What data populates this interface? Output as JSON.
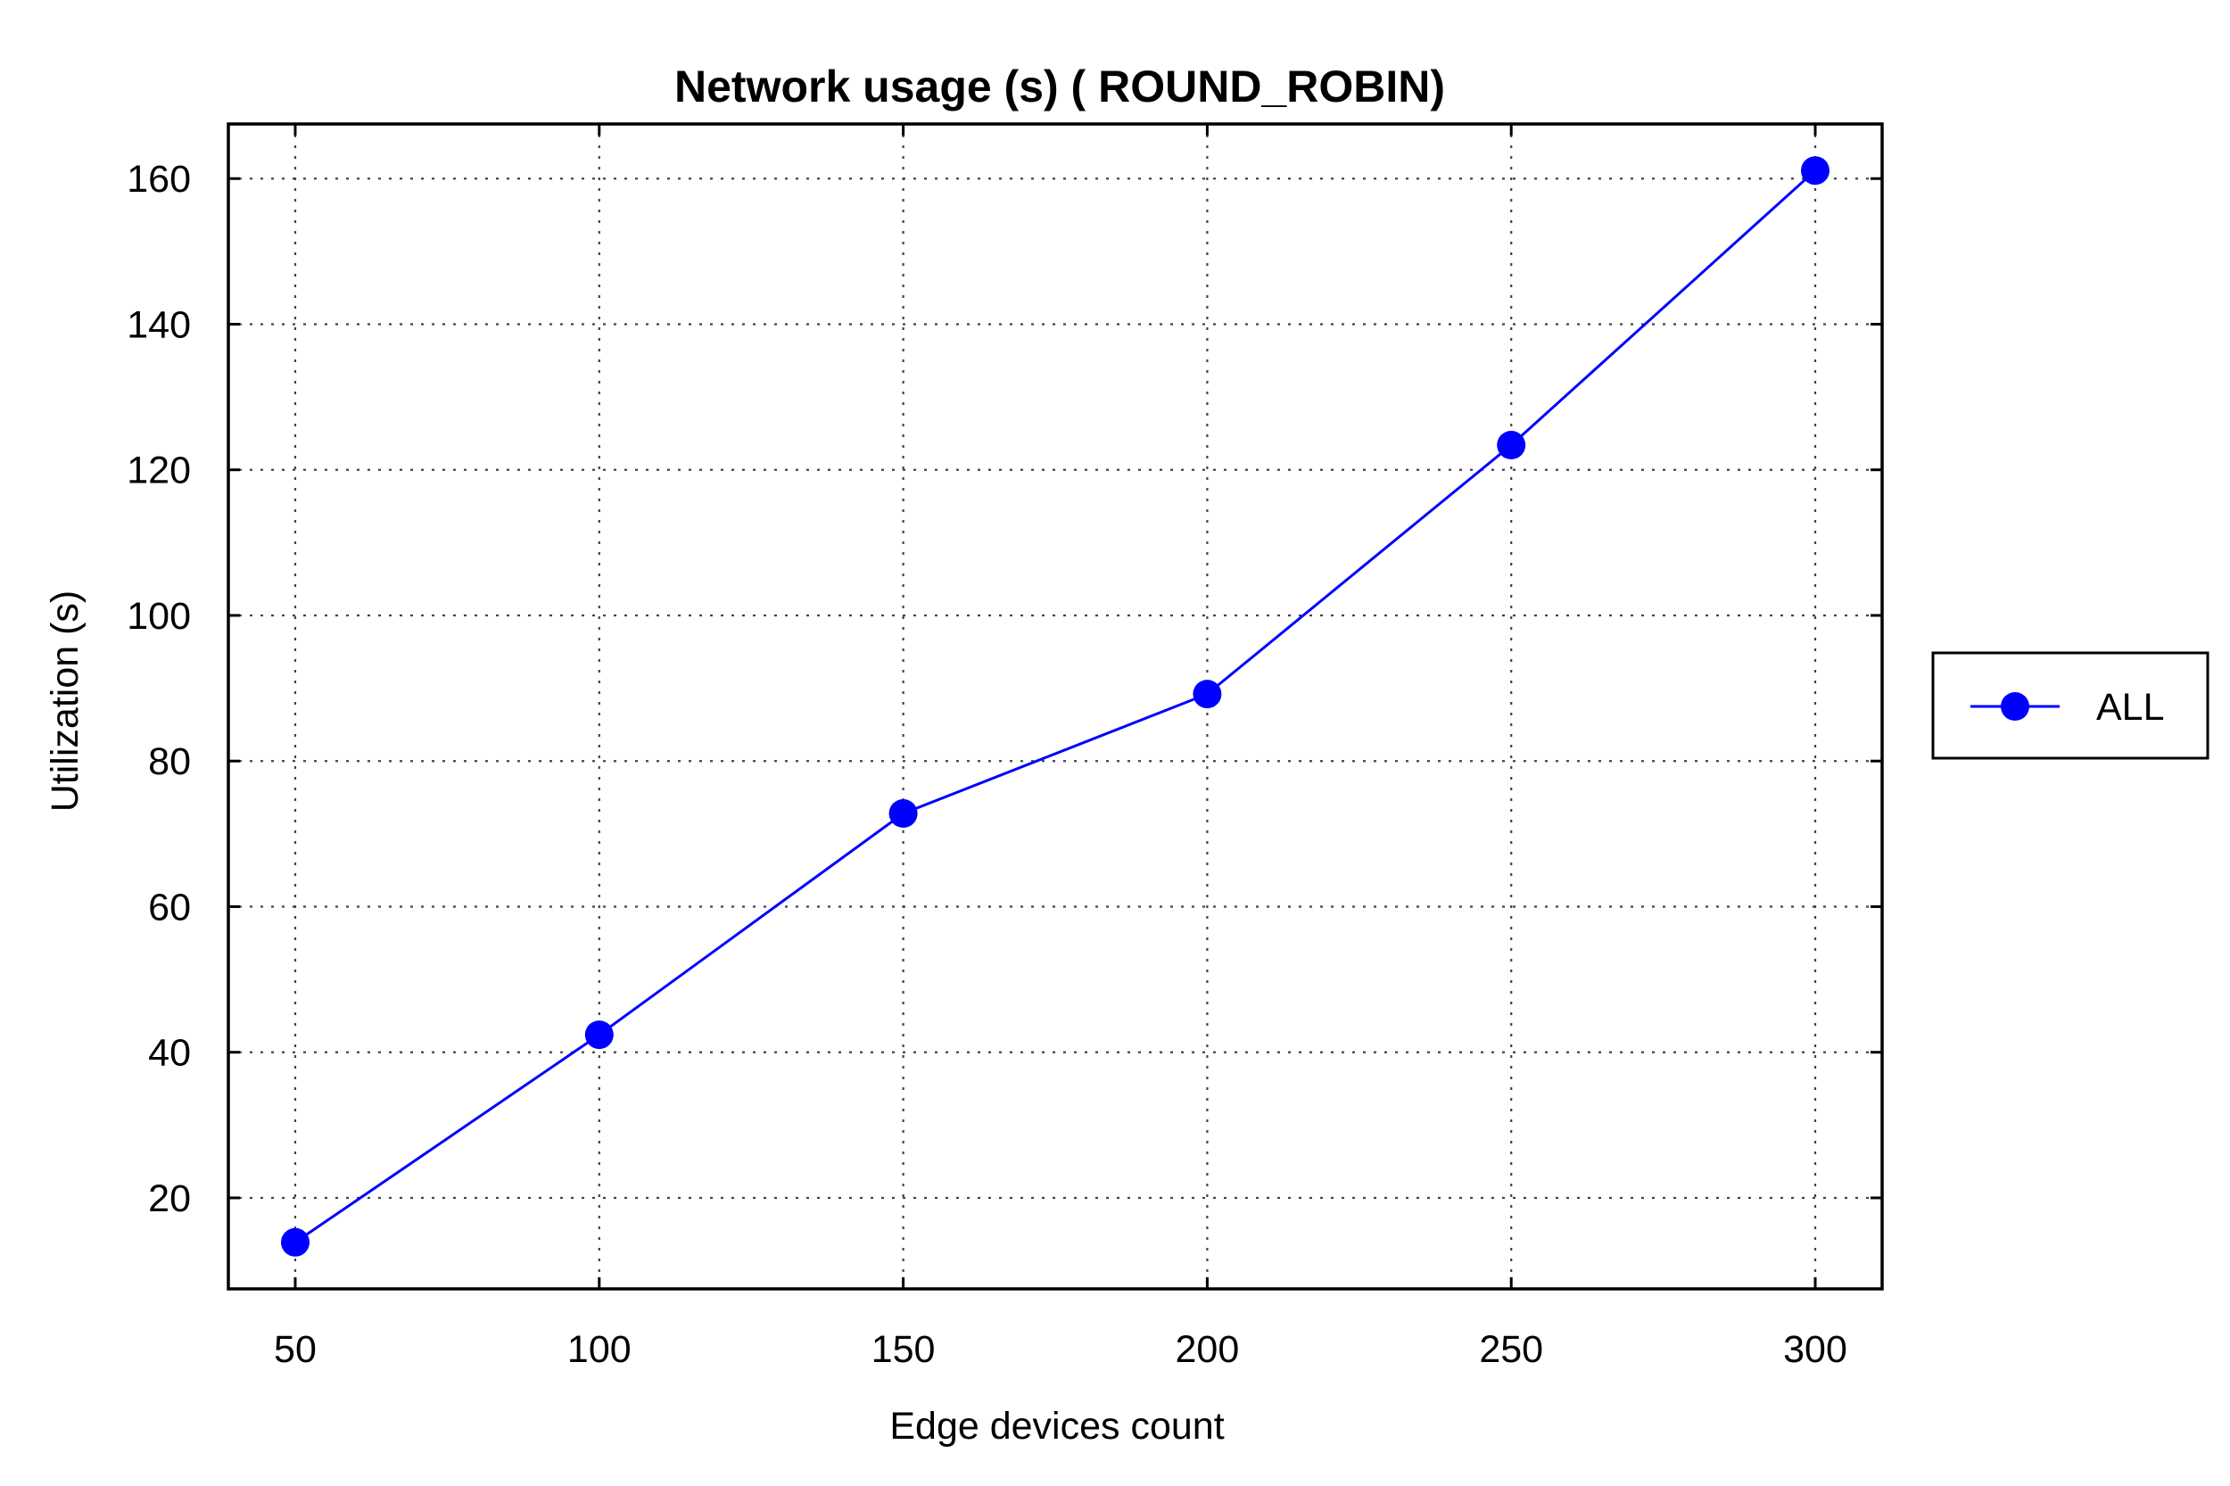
{
  "chart_data": {
    "type": "line",
    "title": "Network usage (s) ( ROUND_ROBIN)",
    "xlabel": "Edge devices count",
    "ylabel": "Utilization (s)",
    "x": [
      50,
      100,
      150,
      200,
      250,
      300
    ],
    "xticks": [
      "50",
      "100",
      "150",
      "200",
      "250",
      "300"
    ],
    "yticks": [
      "20",
      "40",
      "60",
      "80",
      "100",
      "120",
      "140",
      "160"
    ],
    "xlim": [
      39,
      311
    ],
    "ylim": [
      7.5,
      167.5
    ],
    "grid": true,
    "legend_position": "outside-right",
    "series": [
      {
        "name": "ALL",
        "color": "#0000ff",
        "marker": "circle",
        "values": [
          13.9,
          42.4,
          72.8,
          89.2,
          123.4,
          161.1
        ]
      }
    ]
  }
}
